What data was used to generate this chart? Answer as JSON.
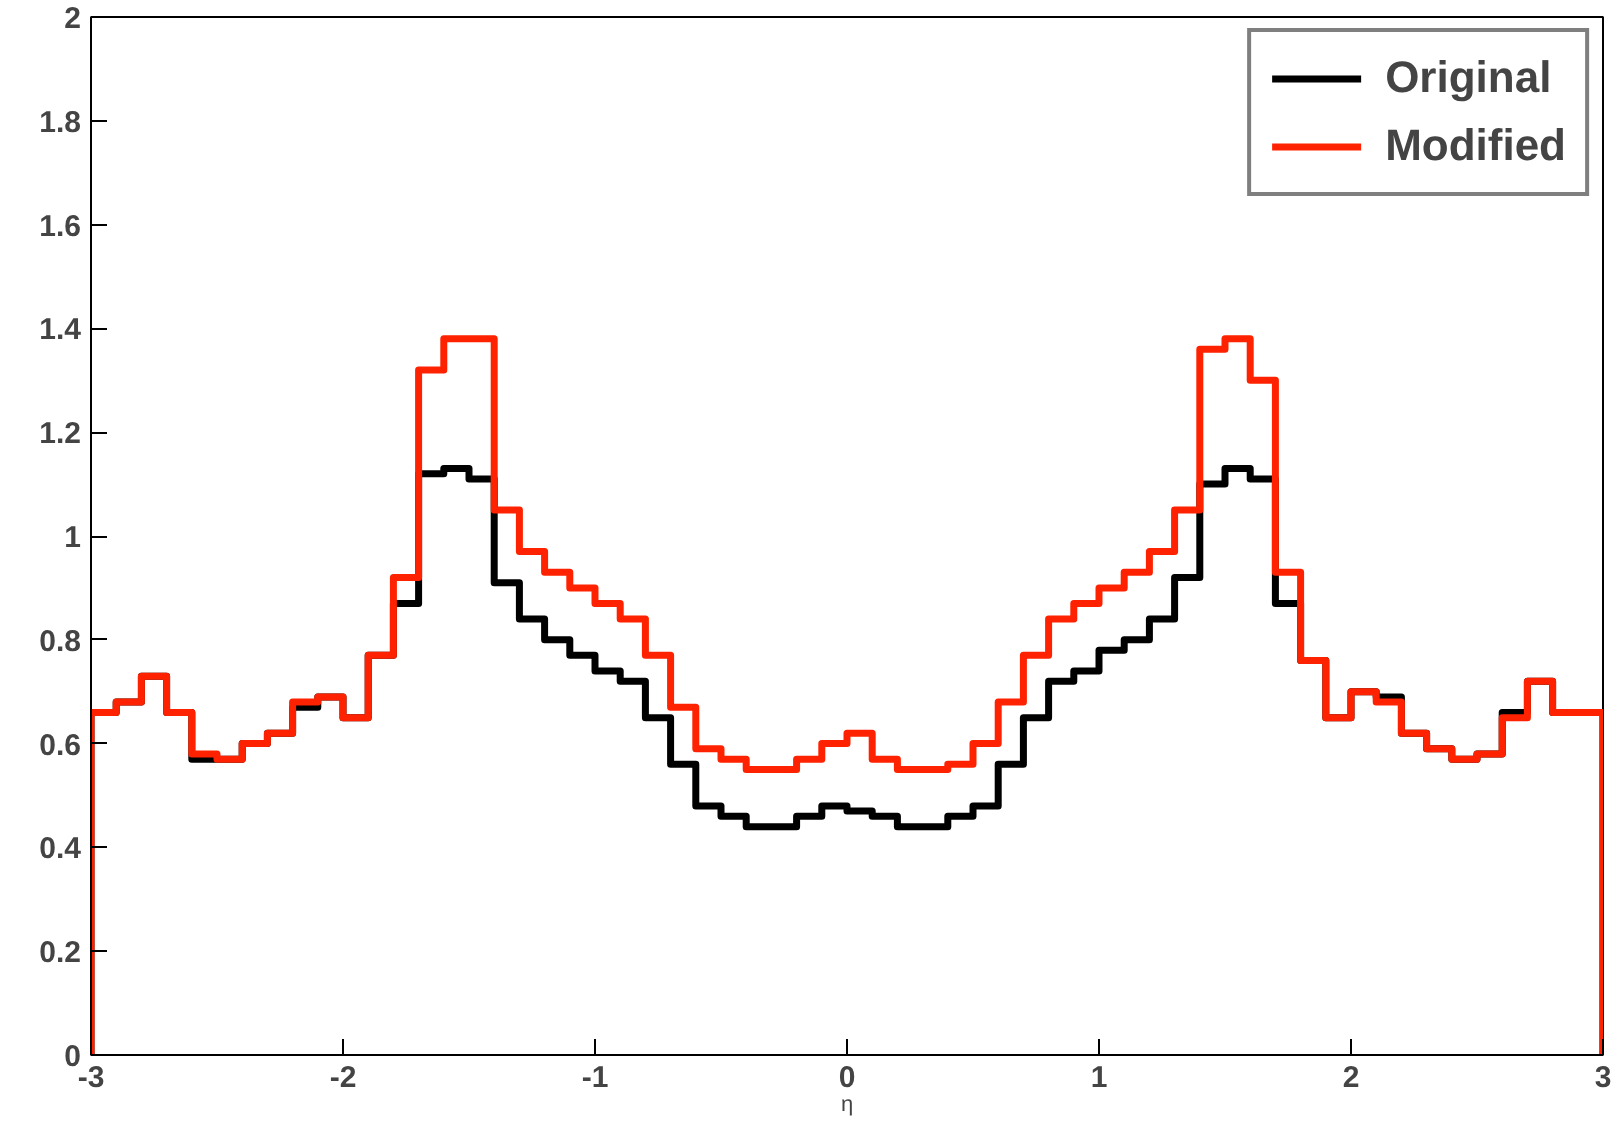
{
  "chart_data": {
    "type": "histogram",
    "xlabel": "η",
    "bins": [
      -3,
      -2.9,
      -2.8,
      -2.7,
      -2.6,
      -2.5,
      -2.4,
      -2.3,
      -2.2,
      -2.1,
      -2,
      -1.9,
      -1.8,
      -1.7,
      -1.6,
      -1.5,
      -1.4,
      -1.3,
      -1.2,
      -1.1,
      -1,
      -0.9,
      -0.8,
      -0.7,
      -0.6,
      -0.5,
      -0.4,
      -0.3,
      -0.2,
      -0.1,
      0,
      0.1,
      0.2,
      0.3,
      0.4,
      0.5,
      0.6,
      0.7,
      0.8,
      0.9,
      1,
      1.1,
      1.2,
      1.3,
      1.4,
      1.5,
      1.6,
      1.7,
      1.8,
      1.9,
      2,
      2.1,
      2.2,
      2.3,
      2.4,
      2.5,
      2.6,
      2.7,
      2.8,
      2.9,
      3
    ],
    "series": [
      {
        "name": "Original",
        "color": "#000000",
        "values": [
          0.66,
          0.68,
          0.73,
          0.66,
          0.57,
          0.57,
          0.6,
          0.62,
          0.67,
          0.69,
          0.65,
          0.77,
          0.87,
          1.12,
          1.13,
          1.11,
          0.91,
          0.84,
          0.8,
          0.77,
          0.74,
          0.72,
          0.65,
          0.56,
          0.48,
          0.46,
          0.44,
          0.44,
          0.46,
          0.48,
          0.47,
          0.46,
          0.44,
          0.44,
          0.46,
          0.48,
          0.56,
          0.65,
          0.72,
          0.74,
          0.78,
          0.8,
          0.84,
          0.92,
          1.1,
          1.13,
          1.11,
          0.87,
          0.76,
          0.65,
          0.7,
          0.69,
          0.62,
          0.59,
          0.57,
          0.58,
          0.66,
          0.72,
          0.66,
          0.66
        ]
      },
      {
        "name": "Modified",
        "color": "#ff2200",
        "values": [
          0.66,
          0.68,
          0.73,
          0.66,
          0.58,
          0.57,
          0.6,
          0.62,
          0.68,
          0.69,
          0.65,
          0.77,
          0.92,
          1.32,
          1.38,
          1.38,
          1.05,
          0.97,
          0.93,
          0.9,
          0.87,
          0.84,
          0.77,
          0.67,
          0.59,
          0.57,
          0.55,
          0.55,
          0.57,
          0.6,
          0.62,
          0.57,
          0.55,
          0.55,
          0.56,
          0.6,
          0.68,
          0.77,
          0.84,
          0.87,
          0.9,
          0.93,
          0.97,
          1.05,
          1.36,
          1.38,
          1.3,
          0.93,
          0.76,
          0.65,
          0.7,
          0.68,
          0.62,
          0.59,
          0.57,
          0.58,
          0.65,
          0.72,
          0.66,
          0.66
        ]
      }
    ],
    "xlim": [
      -3,
      3
    ],
    "xticks": [
      -3,
      -2,
      -1,
      0,
      1,
      2,
      3
    ],
    "ylim": [
      0,
      2
    ],
    "yticks": [
      0,
      0.2,
      0.4,
      0.6,
      0.8,
      1,
      1.2,
      1.4,
      1.6,
      1.8,
      2
    ],
    "grid": false,
    "legend": "top right"
  }
}
